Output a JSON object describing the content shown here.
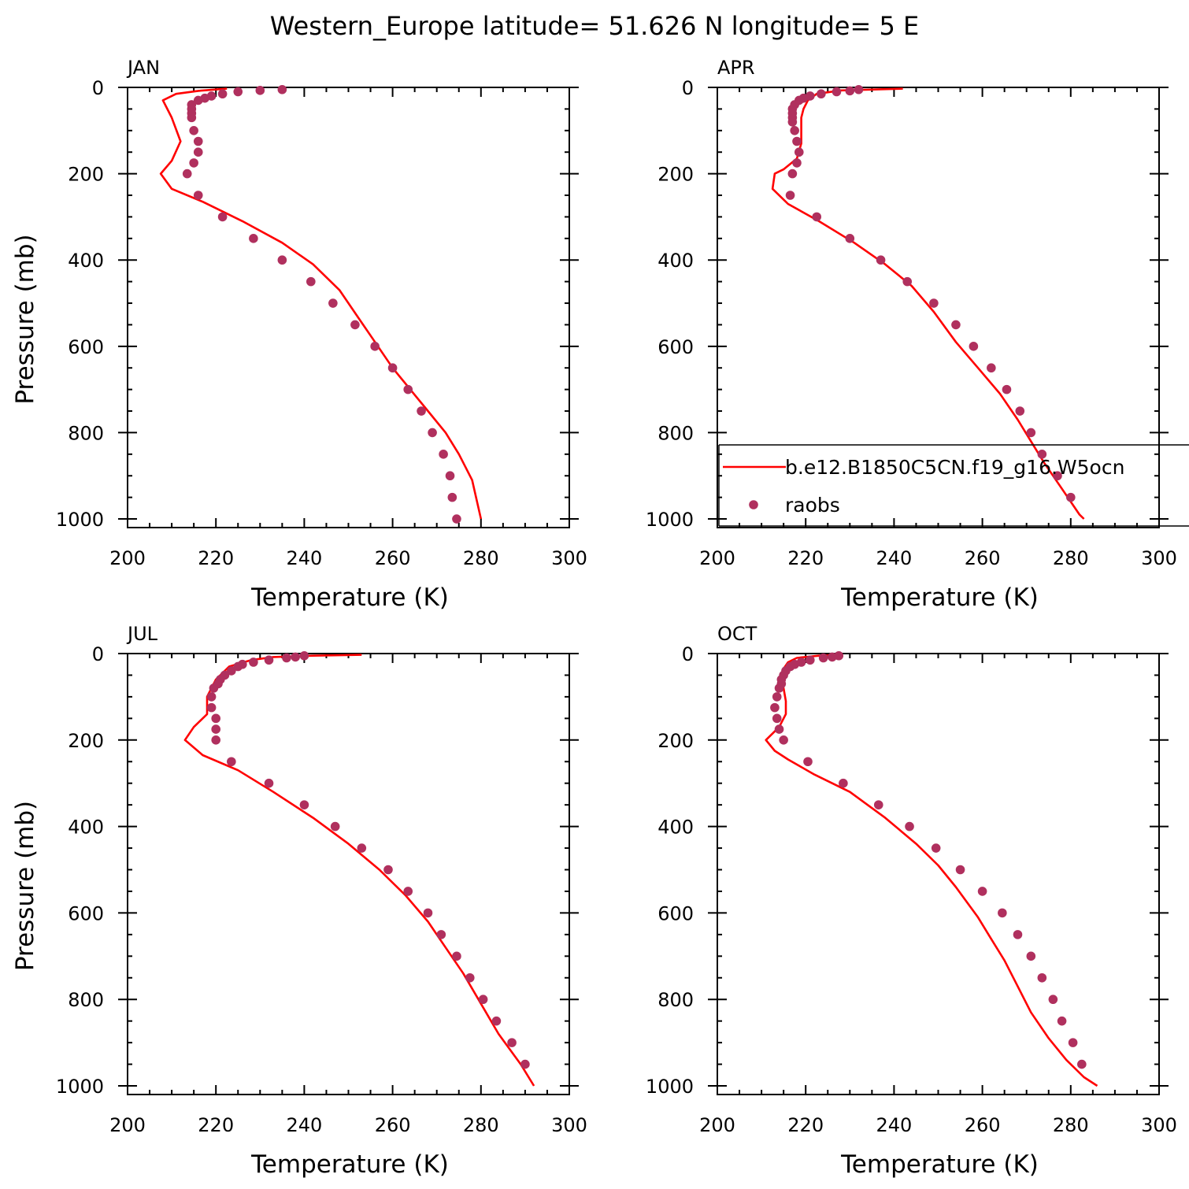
{
  "title": "Western_Europe  latitude= 51.626 N longitude= 5 E",
  "colors": {
    "model": "#ff0000",
    "obs": "#b0305e",
    "axis": "#000000"
  },
  "legend": {
    "model_label": "b.e12.B1850C5CN.f19_g16.W5ocn",
    "obs_label": "raobs"
  },
  "chart_data": [
    {
      "type": "line",
      "panel": "JAN",
      "xlabel": "Temperature (K)",
      "ylabel": "Pressure (mb)",
      "xlim": [
        200,
        300
      ],
      "ylim": [
        1020,
        0
      ],
      "xticks": [
        200,
        220,
        240,
        260,
        280,
        300
      ],
      "yticks": [
        0,
        200,
        400,
        600,
        800,
        1000
      ],
      "model": [
        [
          222.5,
          3
        ],
        [
          216,
          8
        ],
        [
          211,
          15
        ],
        [
          208,
          30
        ],
        [
          210,
          70
        ],
        [
          212,
          125
        ],
        [
          210,
          170
        ],
        [
          207.5,
          200
        ],
        [
          210,
          235
        ],
        [
          217,
          265
        ],
        [
          226,
          310
        ],
        [
          235,
          360
        ],
        [
          242,
          410
        ],
        [
          248,
          470
        ],
        [
          252,
          530
        ],
        [
          256,
          590
        ],
        [
          260,
          650
        ],
        [
          264,
          700
        ],
        [
          268,
          750
        ],
        [
          272,
          800
        ],
        [
          275,
          850
        ],
        [
          278,
          910
        ],
        [
          280,
          1000
        ]
      ],
      "obs": [
        [
          235,
          5
        ],
        [
          230,
          7
        ],
        [
          225,
          10
        ],
        [
          221.5,
          15
        ],
        [
          219,
          20
        ],
        [
          217.5,
          25
        ],
        [
          216,
          30
        ],
        [
          214.5,
          40
        ],
        [
          214.5,
          50
        ],
        [
          214.5,
          60
        ],
        [
          214.5,
          70
        ],
        [
          215,
          100
        ],
        [
          216,
          125
        ],
        [
          216,
          150
        ],
        [
          215,
          175
        ],
        [
          213.5,
          200
        ],
        [
          216,
          250
        ],
        [
          221.5,
          300
        ],
        [
          228.5,
          350
        ],
        [
          235,
          400
        ],
        [
          241.5,
          450
        ],
        [
          246.5,
          500
        ],
        [
          251.5,
          550
        ],
        [
          256,
          600
        ],
        [
          260,
          650
        ],
        [
          263.5,
          700
        ],
        [
          266.5,
          750
        ],
        [
          269,
          800
        ],
        [
          271.5,
          850
        ],
        [
          273,
          900
        ],
        [
          273.5,
          950
        ],
        [
          274.5,
          1000
        ]
      ]
    },
    {
      "type": "line",
      "panel": "APR",
      "xlabel": "Temperature (K)",
      "ylabel": "",
      "xlim": [
        200,
        300
      ],
      "ylim": [
        1020,
        0
      ],
      "xticks": [
        200,
        220,
        240,
        260,
        280,
        300
      ],
      "yticks": [
        0,
        200,
        400,
        600,
        800,
        1000
      ],
      "legend_visible": true,
      "model": [
        [
          242,
          3
        ],
        [
          228,
          7
        ],
        [
          222.5,
          15
        ],
        [
          220.5,
          30
        ],
        [
          219.5,
          50
        ],
        [
          219,
          70
        ],
        [
          219,
          100
        ],
        [
          219,
          130
        ],
        [
          218,
          165
        ],
        [
          215,
          190
        ],
        [
          213,
          200
        ],
        [
          212.5,
          235
        ],
        [
          216,
          270
        ],
        [
          223,
          310
        ],
        [
          231,
          360
        ],
        [
          238,
          410
        ],
        [
          244,
          460
        ],
        [
          249,
          520
        ],
        [
          254,
          590
        ],
        [
          259,
          650
        ],
        [
          264,
          710
        ],
        [
          268,
          770
        ],
        [
          271,
          820
        ],
        [
          274,
          870
        ],
        [
          278,
          930
        ],
        [
          282,
          990
        ],
        [
          283,
          1000
        ]
      ],
      "obs": [
        [
          232,
          5
        ],
        [
          230,
          8
        ],
        [
          227,
          10
        ],
        [
          223.5,
          15
        ],
        [
          221,
          20
        ],
        [
          219.5,
          25
        ],
        [
          218.5,
          30
        ],
        [
          217.5,
          40
        ],
        [
          217,
          50
        ],
        [
          217,
          60
        ],
        [
          217,
          70
        ],
        [
          217,
          80
        ],
        [
          217.5,
          100
        ],
        [
          218,
          125
        ],
        [
          218.5,
          150
        ],
        [
          218,
          175
        ],
        [
          217,
          200
        ],
        [
          216.5,
          250
        ],
        [
          222.5,
          300
        ],
        [
          230,
          350
        ],
        [
          237,
          400
        ],
        [
          243,
          450
        ],
        [
          249,
          500
        ],
        [
          254,
          550
        ],
        [
          258,
          600
        ],
        [
          262,
          650
        ],
        [
          265.5,
          700
        ],
        [
          268.5,
          750
        ],
        [
          271,
          800
        ],
        [
          273.5,
          850
        ],
        [
          277,
          900
        ],
        [
          280,
          950
        ]
      ]
    },
    {
      "type": "line",
      "panel": "JUL",
      "xlabel": "Temperature (K)",
      "ylabel": "Pressure (mb)",
      "xlim": [
        200,
        300
      ],
      "ylim": [
        1020,
        0
      ],
      "xticks": [
        200,
        220,
        240,
        260,
        280,
        300
      ],
      "yticks": [
        0,
        200,
        400,
        600,
        800,
        1000
      ],
      "model": [
        [
          253,
          3
        ],
        [
          242,
          5
        ],
        [
          233,
          8
        ],
        [
          228,
          15
        ],
        [
          223,
          30
        ],
        [
          220,
          60
        ],
        [
          218,
          100
        ],
        [
          218,
          140
        ],
        [
          215,
          170
        ],
        [
          213,
          200
        ],
        [
          217,
          235
        ],
        [
          225,
          270
        ],
        [
          233,
          320
        ],
        [
          242,
          380
        ],
        [
          250,
          440
        ],
        [
          257,
          500
        ],
        [
          263,
          560
        ],
        [
          268,
          620
        ],
        [
          272,
          680
        ],
        [
          276,
          740
        ],
        [
          280,
          810
        ],
        [
          284,
          880
        ],
        [
          289,
          950
        ],
        [
          292,
          1000
        ]
      ],
      "obs": [
        [
          240,
          5
        ],
        [
          238,
          8
        ],
        [
          236,
          10
        ],
        [
          232,
          15
        ],
        [
          228.5,
          20
        ],
        [
          226,
          25
        ],
        [
          225,
          30
        ],
        [
          223.5,
          40
        ],
        [
          222,
          50
        ],
        [
          221,
          60
        ],
        [
          220.5,
          70
        ],
        [
          219.5,
          80
        ],
        [
          219,
          100
        ],
        [
          219,
          125
        ],
        [
          220,
          150
        ],
        [
          220,
          175
        ],
        [
          220,
          200
        ],
        [
          223.5,
          250
        ],
        [
          232,
          300
        ],
        [
          240,
          350
        ],
        [
          247,
          400
        ],
        [
          253,
          450
        ],
        [
          259,
          500
        ],
        [
          263.5,
          550
        ],
        [
          268,
          600
        ],
        [
          271,
          650
        ],
        [
          274.5,
          700
        ],
        [
          277.5,
          750
        ],
        [
          280.5,
          800
        ],
        [
          283.5,
          850
        ],
        [
          287,
          900
        ],
        [
          290,
          950
        ]
      ]
    },
    {
      "type": "line",
      "panel": "OCT",
      "xlabel": "Temperature (K)",
      "ylabel": "",
      "xlim": [
        200,
        300
      ],
      "ylim": [
        1020,
        0
      ],
      "xticks": [
        200,
        220,
        240,
        260,
        280,
        300
      ],
      "yticks": [
        0,
        200,
        400,
        600,
        800,
        1000
      ],
      "model": [
        [
          228,
          3
        ],
        [
          223,
          5
        ],
        [
          218,
          10
        ],
        [
          216,
          20
        ],
        [
          215,
          35
        ],
        [
          214.5,
          55
        ],
        [
          215,
          80
        ],
        [
          215.5,
          110
        ],
        [
          215.5,
          140
        ],
        [
          214,
          170
        ],
        [
          212,
          190
        ],
        [
          211,
          200
        ],
        [
          213,
          225
        ],
        [
          216,
          245
        ],
        [
          222,
          280
        ],
        [
          230,
          320
        ],
        [
          238,
          380
        ],
        [
          245,
          440
        ],
        [
          250,
          490
        ],
        [
          254,
          540
        ],
        [
          259,
          610
        ],
        [
          262,
          660
        ],
        [
          265,
          710
        ],
        [
          268,
          770
        ],
        [
          271,
          830
        ],
        [
          275,
          890
        ],
        [
          279,
          940
        ],
        [
          283,
          980
        ],
        [
          286,
          1000
        ]
      ],
      "obs": [
        [
          227.5,
          5
        ],
        [
          226,
          8
        ],
        [
          224,
          10
        ],
        [
          221,
          15
        ],
        [
          219,
          20
        ],
        [
          217.5,
          25
        ],
        [
          216.5,
          30
        ],
        [
          215.5,
          40
        ],
        [
          215,
          50
        ],
        [
          214.5,
          60
        ],
        [
          214.5,
          70
        ],
        [
          214,
          80
        ],
        [
          213.5,
          100
        ],
        [
          213,
          125
        ],
        [
          213.5,
          150
        ],
        [
          214,
          175
        ],
        [
          215,
          200
        ],
        [
          220.5,
          250
        ],
        [
          228.5,
          300
        ],
        [
          236.5,
          350
        ],
        [
          243.5,
          400
        ],
        [
          249.5,
          450
        ],
        [
          255,
          500
        ],
        [
          260,
          550
        ],
        [
          264.5,
          600
        ],
        [
          268,
          650
        ],
        [
          271,
          700
        ],
        [
          273.5,
          750
        ],
        [
          276,
          800
        ],
        [
          278,
          850
        ],
        [
          280.5,
          900
        ],
        [
          282.5,
          950
        ]
      ]
    }
  ]
}
